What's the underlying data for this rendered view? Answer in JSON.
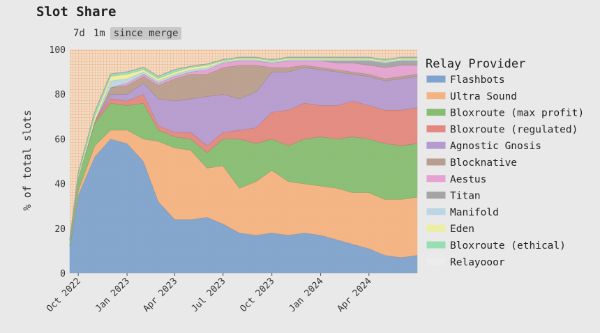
{
  "page": {
    "title": "Slot Share",
    "range_buttons": [
      {
        "label": "7d",
        "active": false
      },
      {
        "label": "1m",
        "active": false
      },
      {
        "label": "since merge",
        "active": true
      }
    ]
  },
  "chart_data": {
    "type": "area",
    "stacked": true,
    "title": "Slot Share",
    "xlabel": "",
    "ylabel": "% of total slots",
    "ylim": [
      0,
      100
    ],
    "xlim": [
      "2022-09-15",
      "2024-07-01"
    ],
    "y_ticks": [
      0,
      20,
      40,
      60,
      80,
      100
    ],
    "x_ticks": [
      "2022-10-01",
      "2023-01-01",
      "2023-04-01",
      "2023-07-01",
      "2023-10-01",
      "2024-01-01",
      "2024-04-01"
    ],
    "x_tick_labels": [
      "Oct 2022",
      "Jan 2023",
      "Apr 2023",
      "Jul 2023",
      "Oct 2023",
      "Jan 2024",
      "Apr 2024"
    ],
    "unfilled_background": "hatched-orange-grid",
    "legend": {
      "title": "Relay Provider",
      "position": "right"
    },
    "x": [
      "2022-09-15",
      "2022-10-01",
      "2022-11-01",
      "2022-12-01",
      "2023-01-01",
      "2023-02-01",
      "2023-03-01",
      "2023-04-01",
      "2023-05-01",
      "2023-06-01",
      "2023-07-01",
      "2023-08-01",
      "2023-09-01",
      "2023-10-01",
      "2023-11-01",
      "2023-12-01",
      "2024-01-01",
      "2024-02-01",
      "2024-03-01",
      "2024-04-01",
      "2024-05-01",
      "2024-06-01",
      "2024-07-01"
    ],
    "series": [
      {
        "name": "Flashbots",
        "color": "#7ea3cf",
        "values": [
          12,
          35,
          52,
          60,
          58,
          50,
          32,
          24,
          24,
          25,
          22,
          18,
          17,
          18,
          17,
          18,
          17,
          15,
          13,
          11,
          8,
          7,
          8
        ]
      },
      {
        "name": "Ultra Sound",
        "color": "#f3b383",
        "values": [
          0,
          2,
          5,
          4,
          6,
          10,
          27,
          32,
          31,
          22,
          26,
          20,
          24,
          28,
          24,
          22,
          22,
          23,
          23,
          25,
          25,
          26,
          26
        ]
      },
      {
        "name": "Bloxroute (max profit)",
        "color": "#86bd73",
        "values": [
          3,
          6,
          10,
          12,
          11,
          16,
          5,
          5,
          5,
          7,
          12,
          22,
          17,
          14,
          16,
          20,
          22,
          22,
          25,
          24,
          25,
          24,
          24
        ]
      },
      {
        "name": "Bloxroute (regulated)",
        "color": "#e28880",
        "values": [
          0,
          0,
          1,
          2,
          2,
          4,
          2,
          2,
          3,
          3,
          3,
          4,
          7,
          12,
          16,
          16,
          14,
          15,
          16,
          15,
          15,
          16,
          16
        ]
      },
      {
        "name": "Agnostic Gnosis",
        "color": "#b49bd0",
        "values": [
          0,
          0,
          0,
          2,
          3,
          5,
          12,
          14,
          15,
          22,
          17,
          14,
          16,
          18,
          17,
          16,
          16,
          15,
          12,
          13,
          13,
          14,
          14
        ]
      },
      {
        "name": "Blocknative",
        "color": "#b89e8e",
        "values": [
          0,
          0,
          0,
          3,
          4,
          3,
          6,
          10,
          11,
          10,
          12,
          15,
          12,
          2,
          2,
          1,
          1,
          1,
          1,
          1,
          1,
          1,
          1
        ]
      },
      {
        "name": "Aestus",
        "color": "#e4a3d3",
        "values": [
          0,
          0,
          0,
          0,
          1,
          1,
          1,
          1,
          1,
          2,
          2,
          2,
          2,
          2,
          3,
          2,
          3,
          3,
          4,
          4,
          5,
          5,
          4
        ]
      },
      {
        "name": "Titan",
        "color": "#a4a4a4",
        "values": [
          0,
          0,
          0,
          0,
          0,
          0,
          0,
          0,
          0,
          0,
          0,
          0,
          0,
          0,
          0,
          0,
          0,
          1,
          1,
          2,
          2,
          2,
          2
        ]
      },
      {
        "name": "Manifold",
        "color": "#bdd6e4",
        "values": [
          0,
          0,
          0,
          3,
          2,
          1,
          1,
          1,
          1,
          1,
          0.5,
          0.5,
          0.5,
          0.5,
          0.5,
          0.5,
          0.5,
          0.5,
          0.5,
          0.5,
          0.5,
          0.5,
          0.5
        ]
      },
      {
        "name": "Eden",
        "color": "#eeeea0",
        "values": [
          0,
          1,
          2,
          2,
          2,
          1,
          1,
          1,
          1,
          1,
          0.5,
          0.5,
          0.5,
          0.5,
          0.5,
          0.5,
          0.5,
          0.5,
          0.5,
          0.5,
          0.5,
          0.5,
          0.5
        ]
      },
      {
        "name": "Bloxroute (ethical)",
        "color": "#97dfb2",
        "values": [
          0,
          1,
          2,
          1,
          1,
          1,
          1,
          1,
          0.5,
          0.5,
          0.5,
          0.5,
          0.5,
          0.5,
          0.5,
          0.5,
          0.5,
          0.5,
          0.5,
          0.5,
          0.5,
          0.5,
          0.5
        ]
      },
      {
        "name": "Relayooor",
        "color": "#ececec",
        "values": [
          0,
          0,
          0,
          0,
          0,
          0,
          0,
          0,
          0,
          0,
          0,
          0,
          0,
          0,
          0,
          0,
          0,
          0,
          0,
          0,
          0,
          0,
          0
        ]
      }
    ]
  }
}
